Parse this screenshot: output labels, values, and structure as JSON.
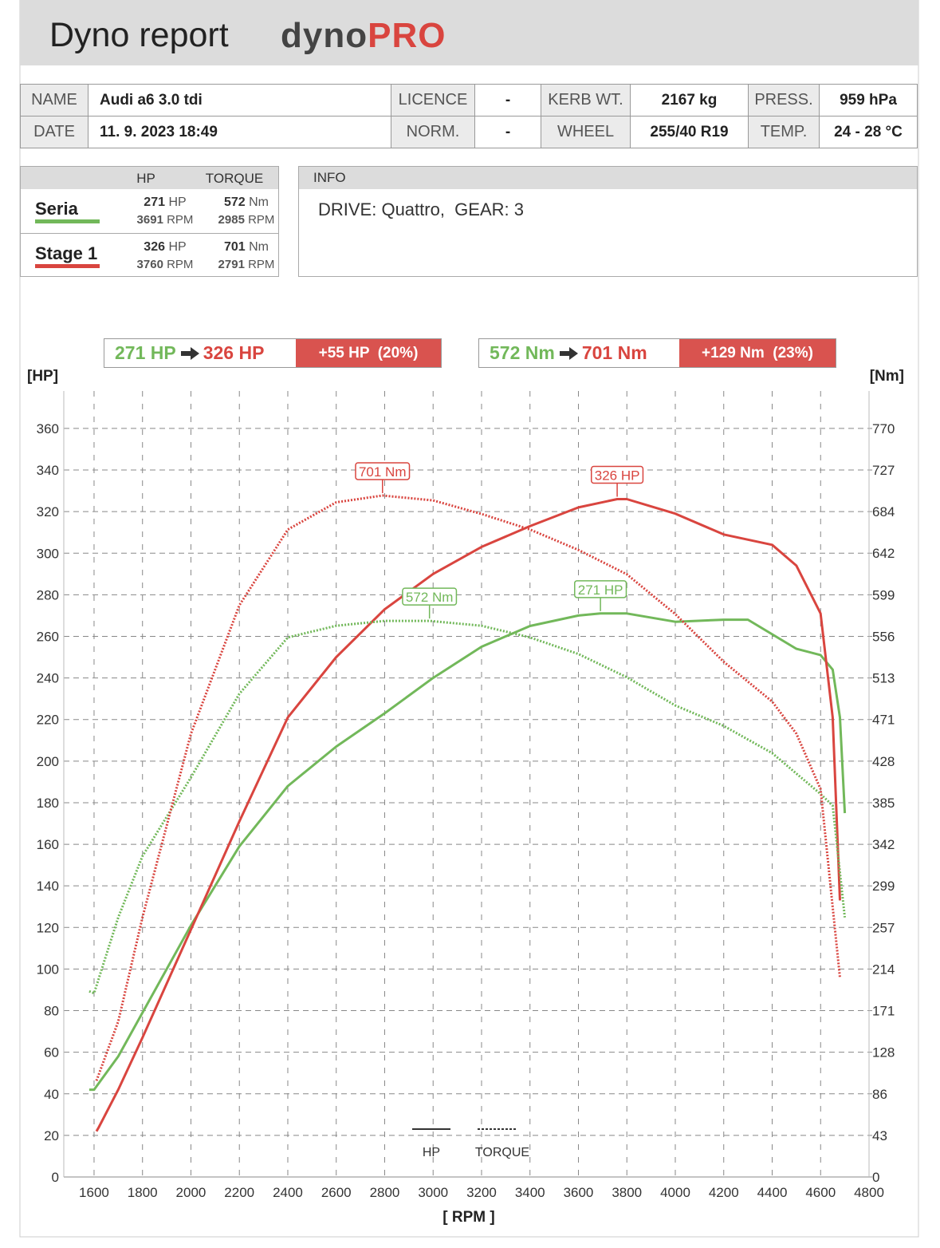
{
  "header": {
    "title": "Dyno report",
    "brand_dyno": "dyno",
    "brand_pro": "PRO"
  },
  "vehicle": {
    "rows": [
      [
        "NAME",
        "Audi a6 3.0 tdi",
        "LICENCE",
        "-",
        "KERB WT.",
        "2167 kg",
        "PRESS.",
        "959 hPa"
      ],
      [
        "DATE",
        "11. 9. 2023 18:49",
        "NORM.",
        "-",
        "WHEEL",
        "255/40 R19",
        "TEMP.",
        "24 - 28 °C"
      ]
    ]
  },
  "summary": {
    "headers": [
      "HP",
      "TORQUE"
    ],
    "rows": [
      {
        "name": "Seria",
        "color": "#72b85a",
        "hp": "271",
        "hp_unit": "HP",
        "hp_rpm": "3691",
        "rpm_unit": "RPM",
        "torque": "572",
        "torque_unit": "Nm",
        "torque_rpm": "2985",
        "torque_rpm_unit": "RPM"
      },
      {
        "name": "Stage 1",
        "color": "#d9453f",
        "hp": "326",
        "hp_unit": "HP",
        "hp_rpm": "3760",
        "rpm_unit": "RPM",
        "torque": "701",
        "torque_unit": "Nm",
        "torque_rpm": "2791",
        "torque_rpm_unit": "RPM"
      }
    ]
  },
  "info": {
    "header": "INFO",
    "text": "DRIVE: Quattro,  GEAR: 3"
  },
  "chart_data": {
    "type": "line",
    "comparisons": [
      {
        "from": "271 HP",
        "to": "326 HP",
        "delta": "+55 HP  (20%)"
      },
      {
        "from": "572 Nm",
        "to": "701 Nm",
        "delta": "+129 Nm  (23%)"
      }
    ],
    "y_label": "[HP]",
    "y2_label": "[Nm]",
    "x_label": "[ RPM ]",
    "line_legend": {
      "solid": "HP",
      "dotted": "TORQUE"
    },
    "grid": true,
    "xlim": [
      1475,
      4800
    ],
    "xticks": [
      1600,
      1800,
      2000,
      2200,
      2400,
      2600,
      2800,
      3000,
      3200,
      3400,
      3600,
      3800,
      4000,
      4200,
      4400,
      4600,
      4800
    ],
    "ylim": [
      0,
      378
    ],
    "yticks": [
      0,
      20,
      40,
      60,
      80,
      100,
      120,
      140,
      160,
      180,
      200,
      220,
      240,
      260,
      280,
      300,
      320,
      340,
      360
    ],
    "y2lim": [
      0,
      808.5
    ],
    "y2ticks": [
      0,
      {
        "value": 42.78,
        "label": "43"
      },
      {
        "value": 85.56,
        "label": "86"
      },
      {
        "value": 128.33,
        "label": "128"
      },
      {
        "value": 171.11,
        "label": "171"
      },
      {
        "value": 213.89,
        "label": "214"
      },
      {
        "value": 256.67,
        "label": "257"
      },
      {
        "value": 299.44,
        "label": "299"
      },
      {
        "value": 342.22,
        "label": "342"
      },
      385,
      {
        "value": 427.78,
        "label": "428"
      },
      {
        "value": 470.56,
        "label": "471"
      },
      {
        "value": 513.33,
        "label": "513"
      },
      {
        "value": 556.11,
        "label": "556"
      },
      {
        "value": 598.89,
        "label": "599"
      },
      {
        "value": 641.67,
        "label": "642"
      },
      {
        "value": 684.44,
        "label": "684"
      },
      {
        "value": 727.22,
        "label": "727"
      },
      770
    ],
    "series": [
      {
        "name": "Seria HP",
        "color": "#72b85a",
        "style": "solid",
        "axis": "y",
        "x": [
          1580,
          1600,
          1700,
          1800,
          2000,
          2200,
          2400,
          2600,
          2800,
          3000,
          3200,
          3400,
          3600,
          3691,
          3800,
          4000,
          4200,
          4300,
          4400,
          4500,
          4600,
          4650,
          4680,
          4700
        ],
        "values": [
          42,
          42,
          58,
          79,
          121,
          159,
          188,
          207,
          223,
          240,
          255,
          265,
          270,
          271,
          271,
          267,
          268,
          268,
          261,
          254,
          251,
          244,
          221,
          175
        ],
        "annotation": {
          "text": "271 HP",
          "x": 3691,
          "y": 271
        }
      },
      {
        "name": "Stage 1 HP",
        "color": "#d9453f",
        "style": "solid",
        "axis": "y",
        "x": [
          1610,
          1620,
          1700,
          1800,
          2000,
          2200,
          2400,
          2600,
          2800,
          3000,
          3200,
          3400,
          3600,
          3760,
          3800,
          4000,
          4200,
          4400,
          4500,
          4600,
          4650,
          4680
        ],
        "values": [
          22,
          24,
          42,
          67,
          119,
          171,
          221,
          250,
          273,
          290,
          303,
          313,
          322,
          326,
          326,
          319,
          309,
          304,
          294,
          271,
          221,
          133
        ],
        "annotation": {
          "text": "326 HP",
          "x": 3760,
          "y": 326
        }
      },
      {
        "name": "Seria TORQUE",
        "color": "#72b85a",
        "style": "dotted",
        "axis": "y2",
        "x": [
          1580,
          1600,
          1700,
          1800,
          2000,
          2200,
          2400,
          2600,
          2800,
          2985,
          3200,
          3400,
          3600,
          3800,
          4000,
          4200,
          4400,
          4600,
          4650,
          4700
        ],
        "values": [
          191,
          189,
          267,
          330,
          411,
          497,
          555,
          567,
          572,
          572,
          567,
          555,
          538,
          514,
          485,
          464,
          436,
          394,
          382,
          267
        ],
        "annotation": {
          "text": "572 Nm",
          "x": 2985,
          "y": 572
        }
      },
      {
        "name": "Stage 1 TORQUE",
        "color": "#d9453f",
        "style": "dotted",
        "axis": "y2",
        "x": [
          1610,
          1700,
          1800,
          2000,
          2200,
          2400,
          2600,
          2791,
          3000,
          3200,
          3400,
          3600,
          3800,
          4000,
          4200,
          4400,
          4500,
          4600,
          4680
        ],
        "values": [
          99,
          160,
          267,
          456,
          588,
          666,
          694,
          701,
          696,
          682,
          666,
          645,
          620,
          579,
          530,
          489,
          456,
          399,
          205
        ],
        "annotation": {
          "text": "701 Nm",
          "x": 2791,
          "y": 701
        }
      }
    ]
  }
}
